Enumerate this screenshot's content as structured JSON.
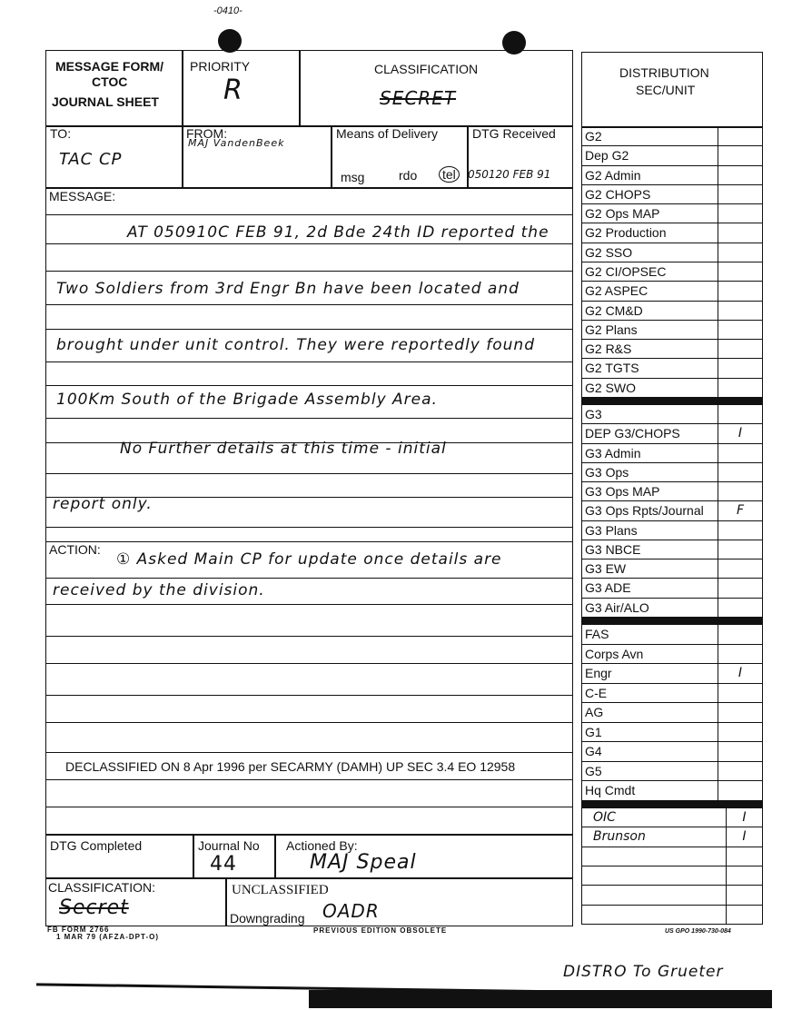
{
  "header": {
    "form_title": [
      "MESSAGE FORM/",
      "CTOC",
      "JOURNAL SHEET"
    ],
    "priority_label": "PRIORITY",
    "priority_value": "R",
    "classification_label": "CLASSIFICATION",
    "classification_value": "SECRET",
    "top_scribble": "-0410-"
  },
  "routing": {
    "to_label": "TO:",
    "to_value": "TAC CP",
    "from_label": "FROM:",
    "from_value": "MAJ VandenBeek",
    "means_label": "Means of Delivery",
    "means_options": [
      "msg",
      "rdo",
      "tel"
    ],
    "means_selected": "tel",
    "dtg_received_label": "DTG Received",
    "dtg_received_value": "050120 FEB 91"
  },
  "message": {
    "label": "MESSAGE:",
    "lines": [
      "AT 050910C FEB 91, 2d Bde 24th ID reported the",
      "Two Soldiers from 3rd Engr Bn have been located and",
      "brought under unit control. They were reportedly found",
      "100Km South of the Brigade Assembly Area.",
      "No Further details at this time - initial",
      "report only."
    ]
  },
  "action": {
    "label": "ACTION:",
    "lines": [
      "① Asked Main CP for update once details are",
      "received by the division."
    ]
  },
  "declassified": "DECLASSIFIED ON 8 Apr 1996 per SECARMY (DAMH) UP SEC 3.4 EO 12958",
  "completion": {
    "dtg_completed_label": "DTG  Completed",
    "journal_no_label": "Journal  No",
    "journal_no_value": "44",
    "actioned_by_label": "Actioned  By:",
    "actioned_by_value": "MAJ Speal"
  },
  "classification_footer": {
    "label": "CLASSIFICATION:",
    "handwritten": "Secret",
    "stamp": "UNCLASSIFIED",
    "downgrading_label": "Downgrading",
    "downgrading_value": "OADR"
  },
  "footer": {
    "form_id": "FB  FORM  2766",
    "form_date": "1  MAR  79  (AFZA-DPT-O)",
    "edition": "PREVIOUS  EDITION  OBSOLETE",
    "gpo": "US GPO 1990-730-084",
    "note": "DISTRO To Grueter"
  },
  "distribution": {
    "title": [
      "DISTRIBUTION",
      "SEC/UNIT"
    ],
    "groups": [
      [
        {
          "name": "G2",
          "mark": ""
        },
        {
          "name": "Dep  G2",
          "mark": ""
        },
        {
          "name": "G2  Admin",
          "mark": ""
        },
        {
          "name": "G2  CHOPS",
          "mark": ""
        },
        {
          "name": "G2  Ops  MAP",
          "mark": ""
        },
        {
          "name": "G2  Production",
          "mark": ""
        },
        {
          "name": "G2  SSO",
          "mark": ""
        },
        {
          "name": "G2  CI/OPSEC",
          "mark": ""
        },
        {
          "name": "G2  ASPEC",
          "mark": ""
        },
        {
          "name": "G2  CM&D",
          "mark": ""
        },
        {
          "name": "G2  Plans",
          "mark": ""
        },
        {
          "name": "G2  R&S",
          "mark": ""
        },
        {
          "name": "G2  TGTS",
          "mark": ""
        },
        {
          "name": "G2  SWO",
          "mark": ""
        }
      ],
      [
        {
          "name": "G3",
          "mark": ""
        },
        {
          "name": "DEP  G3/CHOPS",
          "mark": "I"
        },
        {
          "name": "G3  Admin",
          "mark": ""
        },
        {
          "name": "G3  Ops",
          "mark": ""
        },
        {
          "name": "G3  Ops  MAP",
          "mark": ""
        },
        {
          "name": "G3 Ops Rpts/Journal",
          "mark": "F"
        },
        {
          "name": "G3  Plans",
          "mark": ""
        },
        {
          "name": "G3  NBCE",
          "mark": ""
        },
        {
          "name": "G3  EW",
          "mark": ""
        },
        {
          "name": "G3  ADE",
          "mark": ""
        },
        {
          "name": "G3  Air/ALO",
          "mark": ""
        }
      ],
      [
        {
          "name": "FAS",
          "mark": ""
        },
        {
          "name": "Corps  Avn",
          "mark": ""
        },
        {
          "name": "Engr",
          "mark": "I"
        },
        {
          "name": "C-E",
          "mark": ""
        },
        {
          "name": "AG",
          "mark": ""
        },
        {
          "name": "G1",
          "mark": ""
        },
        {
          "name": "G4",
          "mark": ""
        },
        {
          "name": "G5",
          "mark": ""
        },
        {
          "name": "Hq  Cmdt",
          "mark": ""
        }
      ],
      [
        {
          "name": "OIC",
          "mark": "I"
        },
        {
          "name": "Brunson",
          "mark": "I"
        },
        {
          "name": "",
          "mark": ""
        },
        {
          "name": "",
          "mark": ""
        },
        {
          "name": "",
          "mark": ""
        },
        {
          "name": "",
          "mark": ""
        }
      ]
    ]
  }
}
